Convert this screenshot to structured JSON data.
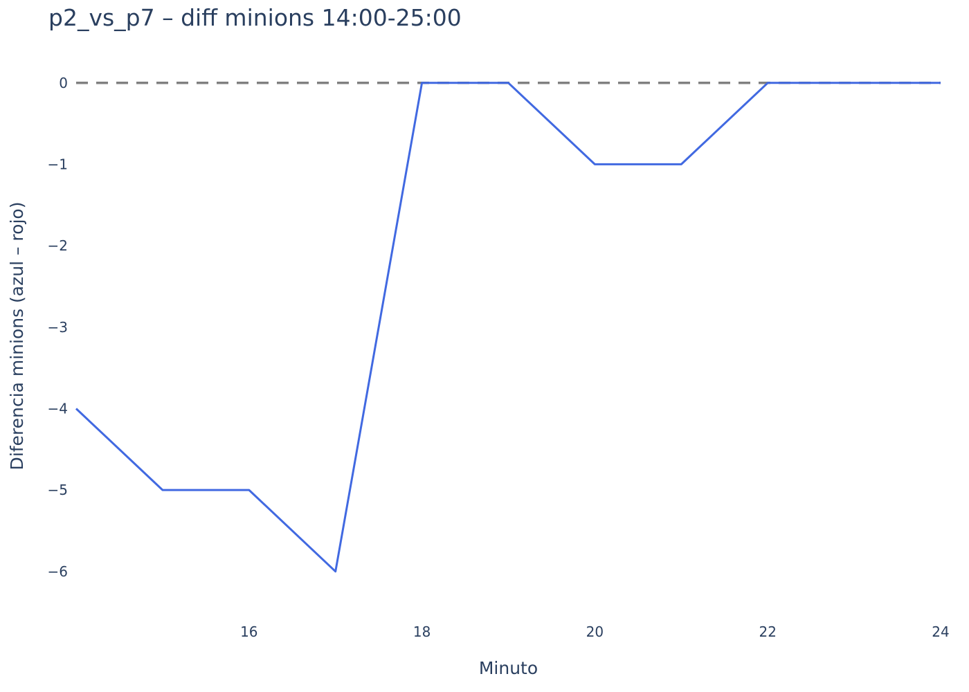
{
  "chart_data": {
    "type": "line",
    "title": "p2_vs_p7 – diff minions 14:00-25:00",
    "xlabel": "Minuto",
    "ylabel": "Diferencia minions (azul – rojo)",
    "x": [
      14,
      15,
      16,
      17,
      18,
      19,
      20,
      21,
      22,
      23,
      24
    ],
    "series": [
      {
        "values": [
          -4,
          -5,
          -5,
          -6,
          0,
          0,
          -1,
          -1,
          0,
          0,
          0
        ],
        "color": "#4169e1"
      }
    ],
    "reference_line": {
      "y": 0,
      "style": "dashed",
      "color": "#808080"
    },
    "xlim": [
      14,
      24
    ],
    "ylim": [
      -6.35,
      0.1
    ],
    "xticks": [
      16,
      18,
      20,
      22,
      24
    ],
    "yticks": [
      0,
      -1,
      -2,
      -3,
      -4,
      -5,
      -6
    ],
    "xtick_labels": [
      "16",
      "18",
      "20",
      "22",
      "24"
    ],
    "ytick_labels": [
      "0",
      "−1",
      "−2",
      "−3",
      "−4",
      "−5",
      "−6"
    ],
    "grid": false,
    "legend": false
  }
}
